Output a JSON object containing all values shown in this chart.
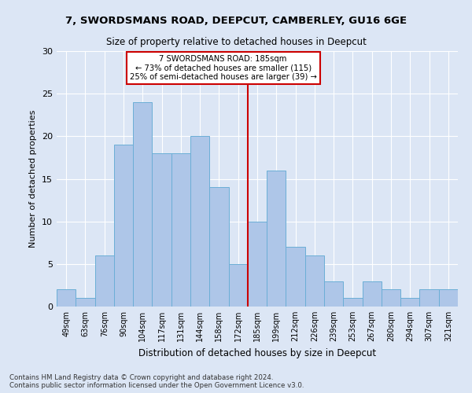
{
  "title_line1": "7, SWORDSMANS ROAD, DEEPCUT, CAMBERLEY, GU16 6GE",
  "title_line2": "Size of property relative to detached houses in Deepcut",
  "xlabel": "Distribution of detached houses by size in Deepcut",
  "ylabel": "Number of detached properties",
  "bin_labels": [
    "49sqm",
    "63sqm",
    "76sqm",
    "90sqm",
    "104sqm",
    "117sqm",
    "131sqm",
    "144sqm",
    "158sqm",
    "172sqm",
    "185sqm",
    "199sqm",
    "212sqm",
    "226sqm",
    "239sqm",
    "253sqm",
    "267sqm",
    "280sqm",
    "294sqm",
    "307sqm",
    "321sqm"
  ],
  "bar_heights": [
    2,
    1,
    6,
    19,
    24,
    18,
    18,
    20,
    14,
    5,
    10,
    16,
    7,
    6,
    3,
    1,
    3,
    2,
    1,
    2,
    2
  ],
  "bar_color": "#aec6e8",
  "bar_edgecolor": "#6baed6",
  "vline_color": "#cc0000",
  "annotation_title": "7 SWORDSMANS ROAD: 185sqm",
  "annotation_line2": "← 73% of detached houses are smaller (115)",
  "annotation_line3": "25% of semi-detached houses are larger (39) →",
  "annotation_box_color": "#cc0000",
  "background_color": "#dce6f5",
  "grid_color": "#ffffff",
  "ylim": [
    0,
    30
  ],
  "yticks": [
    0,
    5,
    10,
    15,
    20,
    25,
    30
  ],
  "footer": "Contains HM Land Registry data © Crown copyright and database right 2024.\nContains public sector information licensed under the Open Government Licence v3.0."
}
